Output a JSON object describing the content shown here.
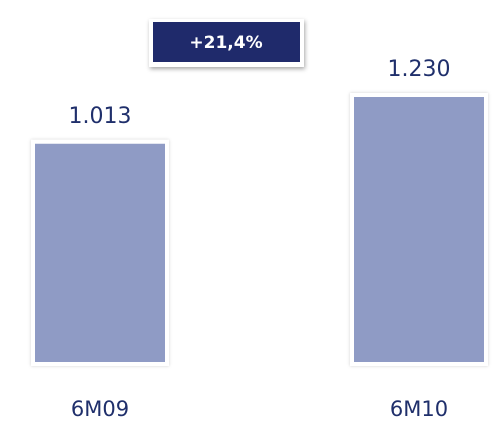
{
  "chart_data": {
    "type": "bar",
    "categories": [
      "6M09",
      "6M10"
    ],
    "values": [
      1013,
      1230
    ],
    "value_labels": [
      "1.013",
      "1.230"
    ],
    "color": "#8f9bc5",
    "annotation": "+21,4%"
  }
}
